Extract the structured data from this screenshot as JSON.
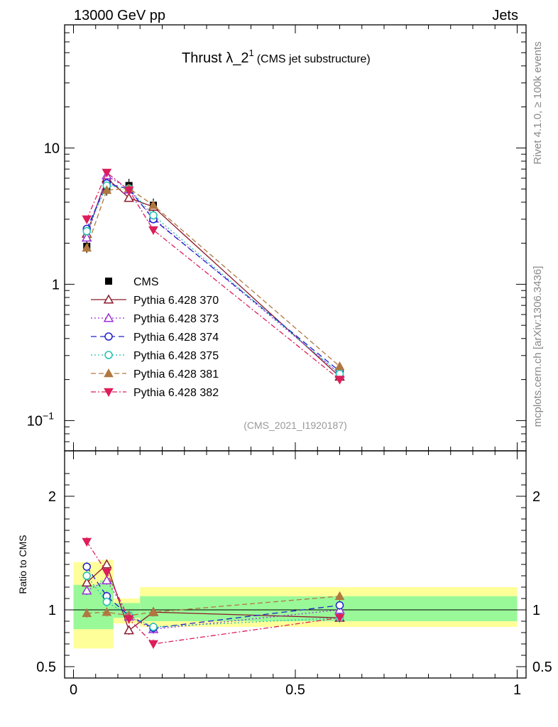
{
  "header": {
    "left": "13000 GeV pp",
    "right": "Jets"
  },
  "side_labels": {
    "rivet": "Rivet 4.1.0, ≥ 100k events",
    "mcplots": "mcplots.cern.ch [arXiv:1306.3436]"
  },
  "chart_data": {
    "type": "line",
    "title": "Thrust λ_2",
    "title_sup": "1",
    "subtitle": "(CMS jet substructure)",
    "analysis_label": "(CMS_2021_I1920187)",
    "ratio_ylabel": "Ratio to CMS",
    "x": [
      0.03,
      0.075,
      0.125,
      0.18,
      0.6
    ],
    "xlim": [
      -0.02,
      1.02
    ],
    "ylim_main": [
      0.06,
      80
    ],
    "ylim_ratio": [
      0.4,
      2.4
    ],
    "x_ticks": [
      0,
      0.5,
      1
    ],
    "x_tick_labels": [
      "0",
      "0.5",
      "1"
    ],
    "main_y_ticks": [
      10,
      1,
      0.1
    ],
    "main_y_tick_labels": [
      "10",
      "1",
      "10^-1"
    ],
    "ratio_y_ticks": [
      2,
      1,
      0.5
    ],
    "ratio_y_tick_labels": [
      "2",
      "1",
      "0.5"
    ],
    "data": {
      "name": "CMS",
      "values": [
        1.9,
        5.0,
        5.3,
        3.8,
        0.22
      ],
      "bin_edges": [
        0,
        0.06,
        0.09,
        0.15,
        0.2,
        1.0
      ],
      "band_inner": [
        [
          0.83,
          1.22
        ],
        [
          0.83,
          1.26
        ],
        [
          0.93,
          1.06
        ],
        [
          0.9,
          1.12
        ],
        [
          0.9,
          1.12
        ]
      ],
      "band_outer": [
        [
          0.66,
          1.42
        ],
        [
          0.66,
          1.44
        ],
        [
          0.88,
          1.1
        ],
        [
          0.85,
          1.2
        ],
        [
          0.85,
          1.2
        ]
      ]
    },
    "series": [
      {
        "name": "Pythia 6.428 370",
        "color": "#8b1a2b",
        "dash": "",
        "marker": "triangle-up-open",
        "values": [
          2.35,
          6.0,
          4.3,
          3.7,
          0.21
        ],
        "ratio": [
          1.24,
          1.4,
          0.82,
          0.98,
          0.93
        ]
      },
      {
        "name": "Pythia 6.428 373",
        "color": "#9b30d9",
        "dash": "2,3",
        "marker": "triangle-up-open",
        "values": [
          2.2,
          6.3,
          4.95,
          3.05,
          0.22
        ],
        "ratio": [
          1.17,
          1.26,
          0.94,
          0.83,
          1.0
        ]
      },
      {
        "name": "Pythia 6.428 374",
        "color": "#2020cc",
        "dash": "8,5",
        "marker": "circle-open",
        "values": [
          2.55,
          5.5,
          5.0,
          3.0,
          0.23
        ],
        "ratio": [
          1.38,
          1.12,
          0.95,
          0.84,
          1.04
        ]
      },
      {
        "name": "Pythia 6.428 375",
        "color": "#20c0b0",
        "dash": "2,3",
        "marker": "circle-open",
        "values": [
          2.45,
          5.3,
          5.05,
          3.2,
          0.22
        ],
        "ratio": [
          1.3,
          1.07,
          0.95,
          0.85,
          0.93
        ]
      },
      {
        "name": "Pythia 6.428 381",
        "color": "#b07840",
        "dash": "7,4",
        "marker": "triangle-up-filled",
        "values": [
          1.85,
          4.9,
          5.05,
          3.8,
          0.25
        ],
        "ratio": [
          0.97,
          0.98,
          0.95,
          0.98,
          1.12
        ]
      },
      {
        "name": "Pythia 6.428 382",
        "color": "#dc1e5a",
        "dash": "7,3,2,3",
        "marker": "triangle-down-filled",
        "values": [
          3.0,
          6.6,
          4.9,
          2.5,
          0.2
        ],
        "ratio": [
          1.6,
          1.33,
          0.92,
          0.7,
          0.93
        ]
      }
    ]
  }
}
